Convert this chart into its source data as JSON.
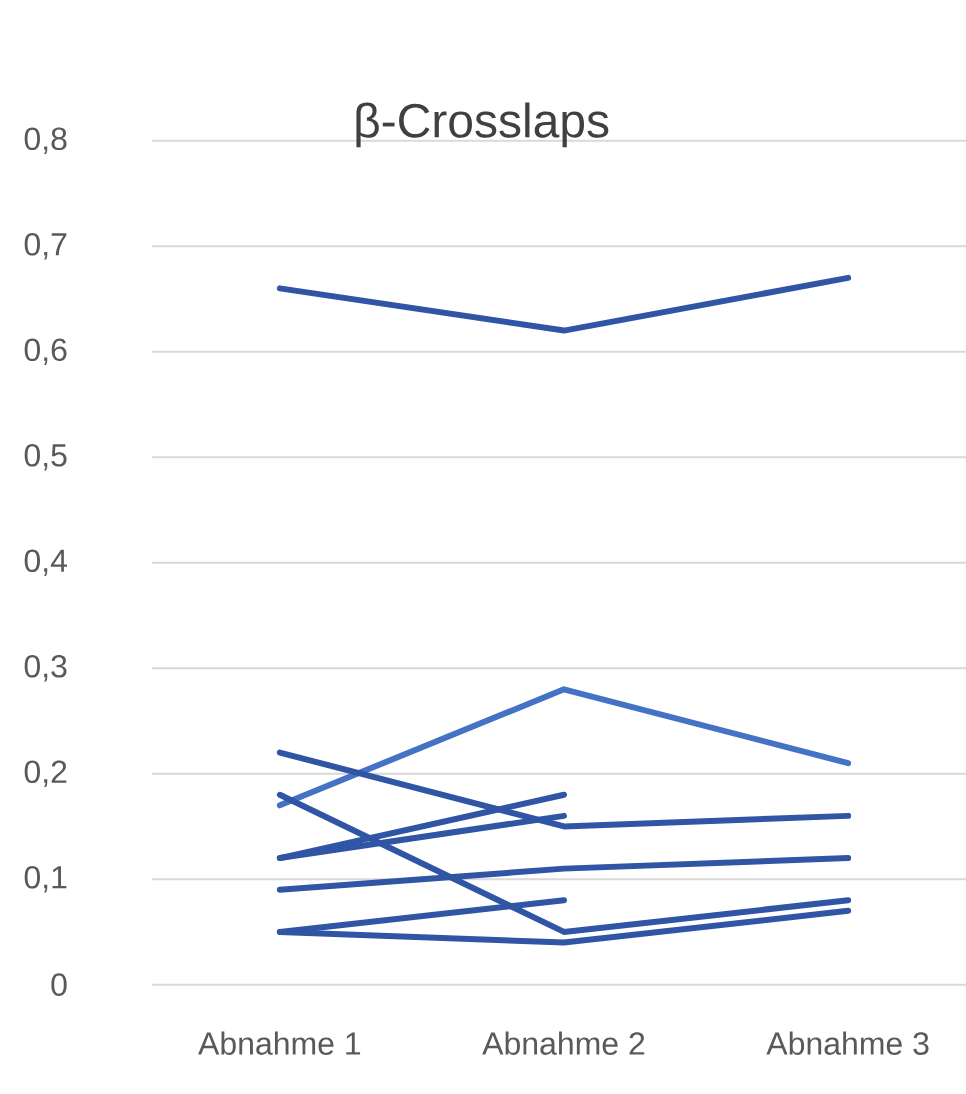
{
  "chart_data": {
    "type": "line",
    "title": "β-Crosslaps",
    "categories": [
      "Abnahme 1",
      "Abnahme 2",
      "Abnahme 3"
    ],
    "series": [
      {
        "color": "#2f55a4",
        "values": [
          0.66,
          0.62,
          0.67
        ]
      },
      {
        "color": "#4472c4",
        "values": [
          0.17,
          0.28,
          0.21
        ]
      },
      {
        "color": "#2f55a4",
        "values": [
          0.22,
          0.15,
          0.16
        ]
      },
      {
        "color": "#2f55a4",
        "values": [
          0.12,
          0.18,
          null
        ]
      },
      {
        "color": "#2f55a4",
        "values": [
          0.12,
          0.16,
          null
        ]
      },
      {
        "color": "#2f55a4",
        "values": [
          0.18,
          0.05,
          0.08
        ]
      },
      {
        "color": "#2f55a4",
        "values": [
          0.09,
          0.11,
          0.12
        ]
      },
      {
        "color": "#2f55a4",
        "values": [
          0.05,
          0.08,
          null
        ]
      },
      {
        "color": "#2f55a4",
        "values": [
          0.05,
          0.04,
          0.07
        ]
      }
    ],
    "ylim": [
      0,
      0.8
    ],
    "yticks": [
      0,
      {
        "value": 0.1,
        "label": "0,1"
      },
      {
        "value": 0.2,
        "label": "0,2"
      },
      {
        "value": 0.3,
        "label": "0,3"
      },
      {
        "value": 0.4,
        "label": "0,4"
      },
      {
        "value": 0.5,
        "label": "0,5"
      },
      {
        "value": 0.6,
        "label": "0,6"
      },
      {
        "value": 0.7,
        "label": "0,7"
      },
      {
        "value": 0.8,
        "label": "0,8"
      }
    ],
    "grid": "y",
    "marker": "none",
    "line_style": "solid"
  }
}
